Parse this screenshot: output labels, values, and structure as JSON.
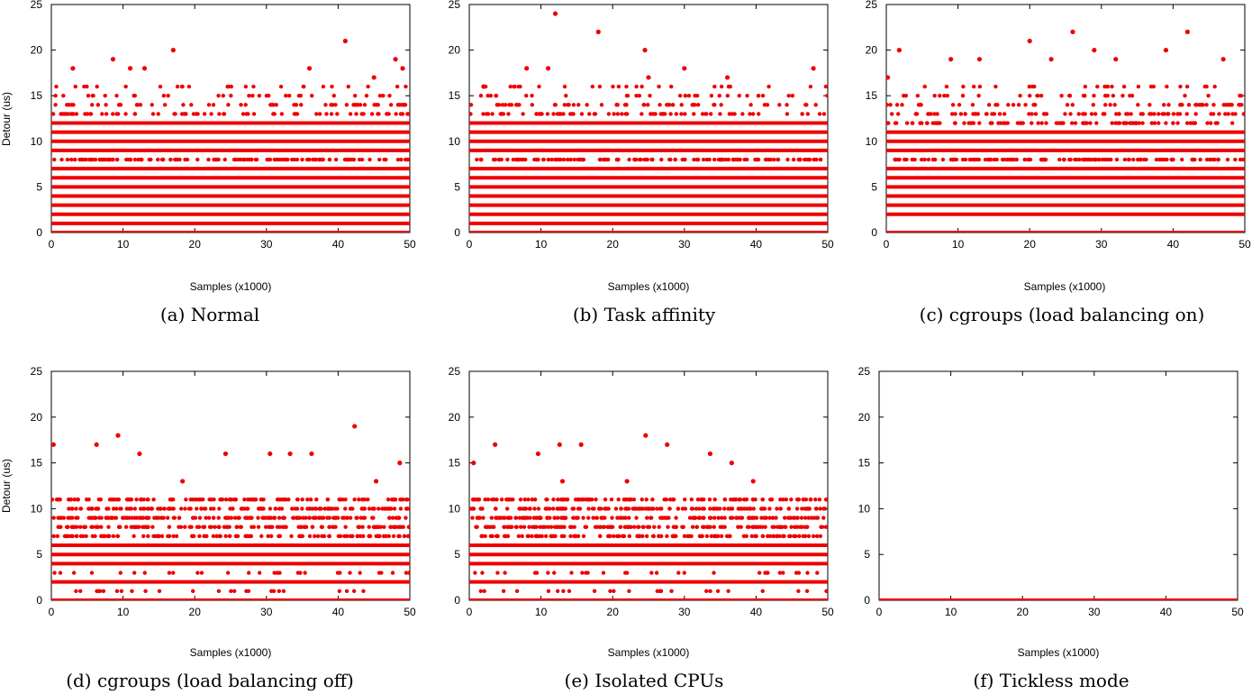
{
  "chart_data": [
    {
      "type": "scatter",
      "panel": "a",
      "caption": "(a) Normal",
      "xlabel": "Samples (x1000)",
      "ylabel": "Detour (us)",
      "xlim": [
        0,
        50
      ],
      "ylim": [
        0,
        25
      ],
      "xticks": [
        0,
        10,
        20,
        30,
        40,
        50
      ],
      "yticks": [
        0,
        5,
        10,
        15,
        20,
        25
      ],
      "color": "#ee0000",
      "dense_levels": [
        0,
        1,
        2,
        3,
        4,
        5,
        6,
        7,
        9,
        10,
        11,
        12
      ],
      "sparse_levels": [
        8,
        13,
        14,
        15,
        16
      ],
      "outliers": [
        [
          8.6,
          19
        ],
        [
          11,
          18
        ],
        [
          13,
          18
        ],
        [
          17,
          20
        ],
        [
          36,
          18
        ],
        [
          41,
          21
        ],
        [
          48,
          19
        ],
        [
          49,
          18
        ],
        [
          3,
          18
        ],
        [
          45,
          17
        ]
      ]
    },
    {
      "type": "scatter",
      "panel": "b",
      "caption": "(b) Task affinity",
      "xlabel": "Samples (x1000)",
      "ylabel": "",
      "xlim": [
        0,
        50
      ],
      "ylim": [
        0,
        25
      ],
      "xticks": [
        0,
        10,
        20,
        30,
        40,
        50
      ],
      "yticks": [
        0,
        5,
        10,
        15,
        20,
        25
      ],
      "color": "#ee0000",
      "dense_levels": [
        0,
        1,
        2,
        3,
        4,
        5,
        6,
        7,
        9,
        10,
        11,
        12
      ],
      "sparse_levels": [
        8,
        13,
        14,
        15,
        16
      ],
      "outliers": [
        [
          12,
          24
        ],
        [
          18,
          22
        ],
        [
          24.5,
          20
        ],
        [
          8,
          18
        ],
        [
          11,
          18
        ],
        [
          30,
          18
        ],
        [
          48,
          18
        ],
        [
          36,
          17
        ],
        [
          25,
          17
        ],
        [
          2,
          16
        ]
      ]
    },
    {
      "type": "scatter",
      "panel": "c",
      "caption": "(c) cgroups (load balancing on)",
      "xlabel": "Samples (x1000)",
      "ylabel": "",
      "xlim": [
        0,
        50
      ],
      "ylim": [
        0,
        25
      ],
      "xticks": [
        0,
        10,
        20,
        30,
        40,
        50
      ],
      "yticks": [
        0,
        5,
        10,
        15,
        20,
        25
      ],
      "color": "#ee0000",
      "dense_levels": [
        0,
        2,
        3,
        4,
        5,
        6,
        7,
        9,
        10,
        11
      ],
      "sparse_levels": [
        8,
        12,
        13,
        14,
        15,
        16
      ],
      "outliers": [
        [
          1.8,
          20
        ],
        [
          20,
          21
        ],
        [
          26,
          22
        ],
        [
          29,
          20
        ],
        [
          39,
          20
        ],
        [
          42,
          22
        ],
        [
          47,
          19
        ],
        [
          9,
          19
        ],
        [
          13,
          19
        ],
        [
          0.2,
          17
        ],
        [
          32,
          19
        ],
        [
          23,
          19
        ]
      ]
    },
    {
      "type": "scatter",
      "panel": "d",
      "caption": "(d) cgroups (load balancing off)",
      "xlabel": "Samples (x1000)",
      "ylabel": "Detour (us)",
      "xlim": [
        0,
        50
      ],
      "ylim": [
        0,
        25
      ],
      "xticks": [
        0,
        10,
        20,
        30,
        40,
        50
      ],
      "yticks": [
        0,
        5,
        10,
        15,
        20,
        25
      ],
      "color": "#ee0000",
      "dense_levels": [
        0,
        2,
        4,
        5,
        6
      ],
      "sparse_levels": [
        1,
        3,
        7,
        8,
        9,
        10,
        11
      ],
      "outliers": [
        [
          0.3,
          17
        ],
        [
          6.3,
          17
        ],
        [
          9.3,
          18
        ],
        [
          12.3,
          16
        ],
        [
          24.3,
          16
        ],
        [
          30.5,
          16
        ],
        [
          33.3,
          16
        ],
        [
          36.3,
          16
        ],
        [
          42.3,
          19
        ],
        [
          45.3,
          13
        ],
        [
          48.6,
          15
        ],
        [
          18.3,
          13
        ]
      ]
    },
    {
      "type": "scatter",
      "panel": "e",
      "caption": "(e) Isolated CPUs",
      "xlabel": "Samples (x1000)",
      "ylabel": "",
      "xlim": [
        0,
        50
      ],
      "ylim": [
        0,
        25
      ],
      "xticks": [
        0,
        10,
        20,
        30,
        40,
        50
      ],
      "yticks": [
        0,
        5,
        10,
        15,
        20,
        25
      ],
      "color": "#ee0000",
      "dense_levels": [
        0,
        2,
        4,
        5,
        6
      ],
      "sparse_levels": [
        1,
        3,
        7,
        8,
        9,
        10,
        11
      ],
      "outliers": [
        [
          0.6,
          15
        ],
        [
          3.6,
          17
        ],
        [
          9.6,
          16
        ],
        [
          12.6,
          17
        ],
        [
          15.6,
          17
        ],
        [
          24.6,
          18
        ],
        [
          27.6,
          17
        ],
        [
          33.6,
          16
        ],
        [
          36.6,
          15
        ],
        [
          39.6,
          13
        ],
        [
          13,
          13
        ],
        [
          22,
          13
        ]
      ]
    },
    {
      "type": "scatter",
      "panel": "f",
      "caption": "(f) Tickless mode",
      "xlabel": "Samples (x1000)",
      "ylabel": "",
      "xlim": [
        0,
        50
      ],
      "ylim": [
        0,
        25
      ],
      "xticks": [
        0,
        10,
        20,
        30,
        40,
        50
      ],
      "yticks": [
        0,
        5,
        10,
        15,
        20,
        25
      ],
      "color": "#ee0000",
      "dense_levels": [
        0
      ],
      "sparse_levels": [],
      "outliers": []
    }
  ]
}
